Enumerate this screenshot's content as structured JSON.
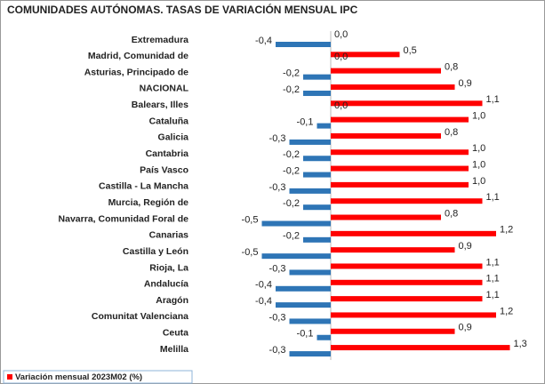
{
  "chart_data": {
    "type": "bar",
    "orientation": "horizontal",
    "title": "COMUNIDADES AUTÓNOMAS. TASAS DE VARIACIÓN MENSUAL IPC",
    "categories": [
      "Extremadura",
      "Madrid, Comunidad de",
      "Asturias, Principado de",
      "NACIONAL",
      "Balears, Illes",
      "Cataluña",
      "Galicia",
      "Cantabria",
      "País Vasco",
      "Castilla - La Mancha",
      "Murcia, Región de",
      "Navarra, Comunidad Foral de",
      "Canarias",
      "Castilla y León",
      "Rioja, La",
      "Andalucía",
      "Aragón",
      "Comunitat Valenciana",
      "Ceuta",
      "Melilla"
    ],
    "series": [
      {
        "name": "Variación mensual 2023M02 (%)",
        "color": "#ff0000",
        "values": [
          0.0,
          0.5,
          0.8,
          0.9,
          1.1,
          1.0,
          0.8,
          1.0,
          1.0,
          1.0,
          1.1,
          0.8,
          1.2,
          0.9,
          1.1,
          1.1,
          1.1,
          1.2,
          0.9,
          1.3
        ],
        "value_labels": [
          "0,0",
          "0,5",
          "0,8",
          "0,9",
          "1,1",
          "1,0",
          "0,8",
          "1,0",
          "1,0",
          "1,0",
          "1,1",
          "0,8",
          "1,2",
          "0,9",
          "1,1",
          "1,1",
          "1,1",
          "1,2",
          "0,9",
          "1,3"
        ]
      },
      {
        "color": "#2e75b6",
        "values": [
          -0.4,
          0.0,
          -0.2,
          -0.2,
          0.0,
          -0.1,
          -0.3,
          -0.2,
          -0.2,
          -0.3,
          -0.2,
          -0.5,
          -0.2,
          -0.5,
          -0.3,
          -0.4,
          -0.4,
          -0.3,
          -0.1,
          -0.3
        ],
        "value_labels": [
          "-0,4",
          "0,0",
          "-0,2",
          "-0,2",
          "0,0",
          "-0,1",
          "-0,3",
          "-0,2",
          "-0,2",
          "-0,3",
          "-0,2",
          "-0,5",
          "-0,2",
          "-0,5",
          "-0,3",
          "-0,4",
          "-0,4",
          "-0,3",
          "-0,1",
          "-0,3"
        ]
      }
    ],
    "legend": "bottom-left"
  }
}
